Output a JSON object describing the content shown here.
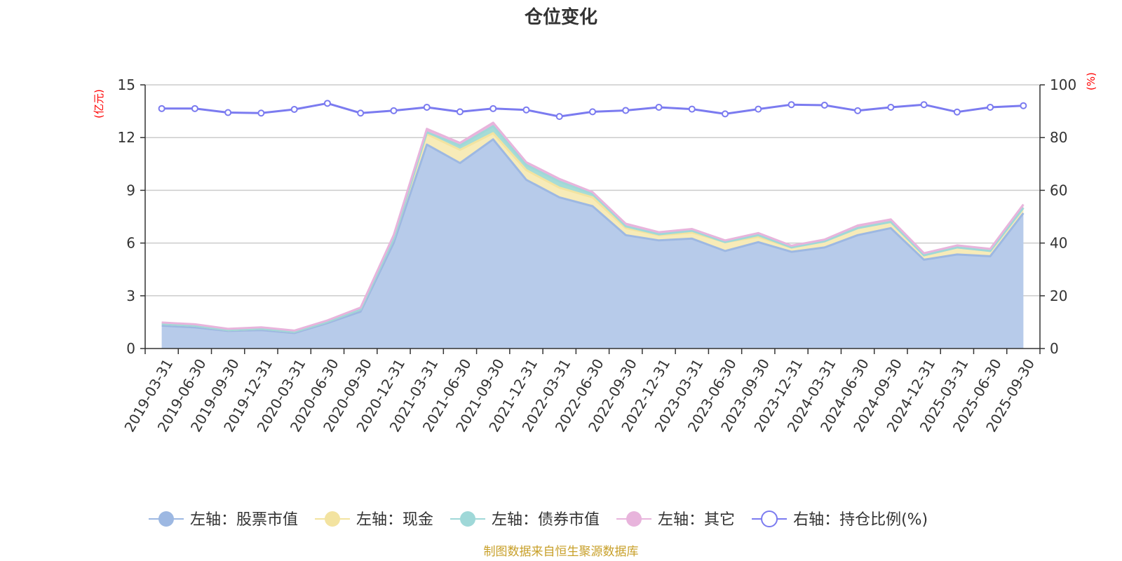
{
  "chart_data": {
    "type": "area",
    "title": "仓位变化",
    "left_unit": "(亿元)",
    "right_unit": "(%)",
    "source": "制图数据来自恒生聚源数据库",
    "categories": [
      "2019-03-31",
      "2019-06-30",
      "2019-09-30",
      "2019-12-31",
      "2020-03-31",
      "2020-06-30",
      "2020-09-30",
      "2020-12-31",
      "2021-03-31",
      "2021-06-30",
      "2021-09-30",
      "2021-12-31",
      "2022-03-31",
      "2022-06-30",
      "2022-09-30",
      "2022-12-31",
      "2023-03-31",
      "2023-06-30",
      "2023-09-30",
      "2023-12-31",
      "2024-03-31",
      "2024-06-30",
      "2024-09-30",
      "2024-12-31",
      "2025-03-31",
      "2025-06-30",
      "2025-09-30"
    ],
    "left_axis": {
      "min": 0,
      "max": 15,
      "ticks": [
        0,
        3,
        6,
        9,
        12,
        15
      ]
    },
    "right_axis": {
      "min": 0,
      "max": 100,
      "ticks": [
        0,
        20,
        40,
        60,
        80,
        100
      ]
    },
    "series": [
      {
        "name": "左轴：股票市值",
        "axis": "left",
        "color": "#9db8e2",
        "fill": "#b7cbea",
        "values": [
          1.3,
          1.2,
          1.0,
          1.05,
          0.88,
          1.45,
          2.1,
          6.0,
          11.6,
          10.55,
          11.9,
          9.6,
          8.6,
          8.1,
          6.45,
          6.15,
          6.25,
          5.55,
          6.05,
          5.5,
          5.75,
          6.45,
          6.85,
          5.05,
          5.35,
          5.25,
          7.7
        ]
      },
      {
        "name": "左轴：现金",
        "axis": "left",
        "color": "#f3e3a0",
        "fill": "#f7ebb8",
        "values": [
          0.1,
          0.1,
          0.05,
          0.08,
          0.07,
          0.07,
          0.13,
          0.25,
          0.6,
          0.75,
          0.35,
          0.55,
          0.55,
          0.5,
          0.4,
          0.3,
          0.35,
          0.5,
          0.3,
          0.25,
          0.35,
          0.4,
          0.35,
          0.25,
          0.4,
          0.3,
          0.3
        ]
      },
      {
        "name": "左轴：债券市值",
        "axis": "left",
        "color": "#9fd8d8",
        "fill": "#a6dcd6",
        "values": [
          0,
          0,
          0,
          0,
          0,
          0,
          0,
          0,
          0.1,
          0.25,
          0.4,
          0.3,
          0.35,
          0.2,
          0.1,
          0.05,
          0.1,
          0,
          0.1,
          0,
          0,
          0,
          0,
          0,
          0,
          0,
          0
        ]
      },
      {
        "name": "左轴：其它",
        "axis": "left",
        "color": "#e8b4dc",
        "fill": "#eab6dc",
        "values": [
          0.08,
          0.08,
          0.07,
          0.08,
          0.07,
          0.08,
          0.1,
          0.2,
          0.2,
          0.15,
          0.2,
          0.15,
          0.15,
          0.1,
          0.15,
          0.12,
          0.1,
          0.1,
          0.12,
          0.1,
          0.1,
          0.15,
          0.15,
          0.12,
          0.12,
          0.12,
          0.2
        ]
      },
      {
        "name": "右轴：持仓比例(%)",
        "axis": "right",
        "color": "#7b7bf0",
        "fill": "none",
        "values": [
          91.0,
          91.0,
          89.5,
          89.3,
          90.7,
          93.0,
          89.3,
          90.2,
          91.5,
          89.8,
          91.0,
          90.5,
          88.0,
          89.8,
          90.3,
          91.5,
          90.8,
          89.0,
          90.8,
          92.5,
          92.3,
          90.2,
          91.5,
          92.5,
          89.7,
          91.5,
          92.1
        ]
      }
    ]
  }
}
